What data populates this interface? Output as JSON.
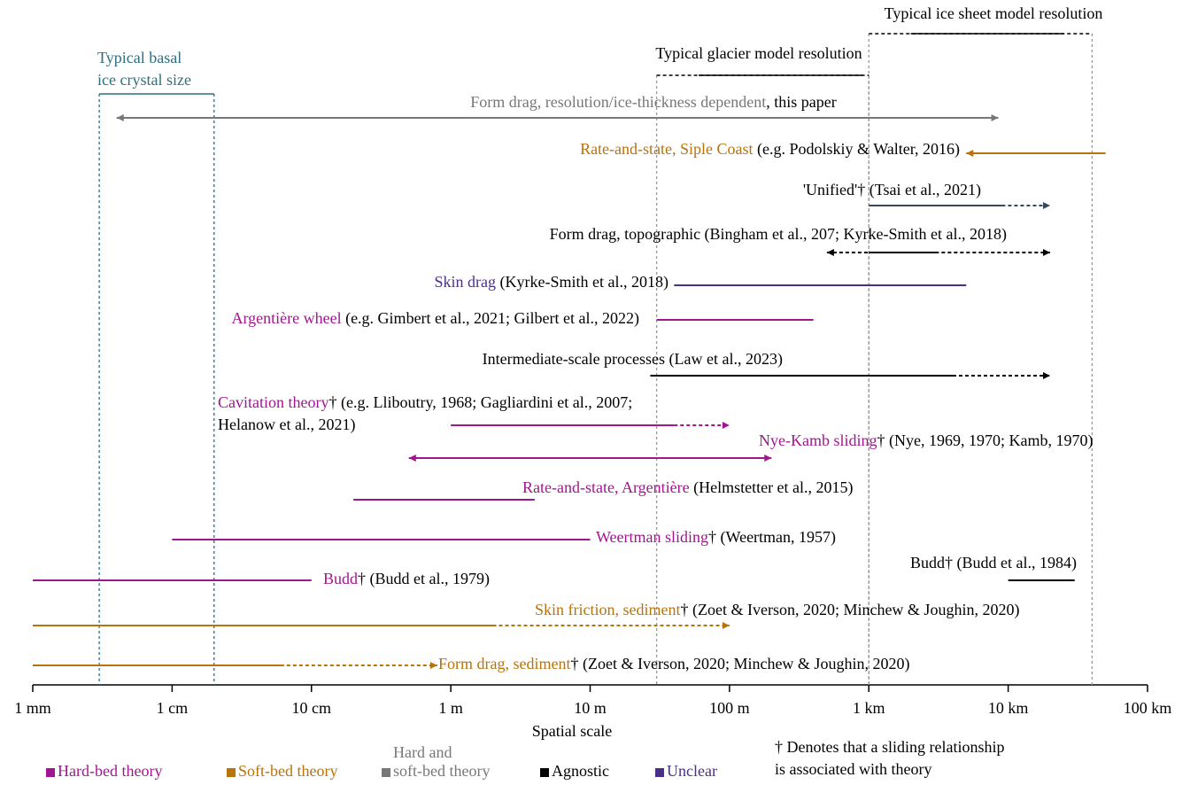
{
  "chart_data": {
    "type": "range",
    "xlabel": "Spatial scale",
    "log_x": true,
    "xlim": [
      0.001,
      100000
    ],
    "xticks": [
      {
        "value": 0.001,
        "label": "1 mm"
      },
      {
        "value": 0.01,
        "label": "1 cm"
      },
      {
        "value": 0.1,
        "label": "10 cm"
      },
      {
        "value": 1,
        "label": "1 m"
      },
      {
        "value": 10,
        "label": "10 m"
      },
      {
        "value": 100,
        "label": "100 m"
      },
      {
        "value": 1000,
        "label": "1 km"
      },
      {
        "value": 10000,
        "label": "10 km"
      },
      {
        "value": 100000,
        "label": "100 km"
      }
    ],
    "legend": [
      {
        "lines": [
          "Hard-bed theory"
        ],
        "color": "#a0168f"
      },
      {
        "lines": [
          "Soft-bed theory"
        ],
        "color": "#b8730a"
      },
      {
        "lines": [
          "Hard and",
          "soft-bed theory"
        ],
        "color": "#777777"
      },
      {
        "lines": [
          "Agnostic"
        ],
        "color": "#000000"
      },
      {
        "lines": [
          "Unclear"
        ],
        "color": "#4b2d8a"
      }
    ],
    "footnote": [
      "† Denotes that a sliding relationship",
      "is associated with theory"
    ],
    "references": [
      {
        "lines": [
          "Typical ice sheet model resolution"
        ],
        "color": "#000000",
        "dashed": [
          1000,
          40000
        ],
        "solid": [
          2000,
          25000
        ]
      },
      {
        "lines": [
          "Typical glacier model resolution"
        ],
        "color": "#000000",
        "dashed": [
          30,
          1000
        ],
        "solid": [
          60,
          900
        ]
      },
      {
        "lines": [
          "Typical basal",
          "ice crystal size"
        ],
        "color": "#2e6f80",
        "solid": [
          0.003,
          0.02
        ]
      }
    ],
    "items": [
      {
        "name": "Form drag, resolution/ice-thickness dependent",
        "citation": [
          ", this paper"
        ],
        "category": 2,
        "solid": [
          0.004,
          8500
        ],
        "arrows": "both"
      },
      {
        "name": "Rate-and-state, Siple Coast",
        "citation": [
          " (e.g. Podolskiy & Walter, 2016)"
        ],
        "category": 1,
        "solid": [
          5000,
          50000
        ],
        "arrows": "left"
      },
      {
        "citation": [
          "'Unified'† (Tsai et al., 2021)"
        ],
        "category": 3,
        "color": "#34495e",
        "solid": [
          1000,
          9000
        ],
        "dashed": [
          9000,
          20000
        ],
        "arrows": "right"
      },
      {
        "citation": [
          "Form drag, topographic (Bingham et al., 207; Kyrke-Smith et al., 2018)"
        ],
        "category": 3,
        "dashed_left": [
          500,
          1000
        ],
        "solid": [
          1000,
          3000
        ],
        "dashed": [
          3000,
          20000
        ],
        "arrows": "both"
      },
      {
        "name": "Skin drag",
        "citation": [
          " (Kyrke-Smith et al., 2018)"
        ],
        "category": 4,
        "solid": [
          40,
          5000
        ]
      },
      {
        "name": "Argentière wheel",
        "citation": [
          " (e.g. Gimbert et al., 2021; Gilbert et al., 2022)"
        ],
        "category": 0,
        "solid": [
          30,
          400
        ]
      },
      {
        "citation": [
          "Intermediate-scale processes (Law et al., 2023)"
        ],
        "category": 3,
        "solid": [
          27,
          4000
        ],
        "dashed": [
          4000,
          20000
        ],
        "arrows": "right"
      },
      {
        "name": "Cavitation theory",
        "citation": [
          "† (e.g. Lliboutry, 1968; Gagliardini et al., 2007;",
          "Helanow et al., 2021)"
        ],
        "category": 0,
        "solid": [
          1,
          40
        ],
        "dashed": [
          40,
          100
        ],
        "arrows": "right"
      },
      {
        "name": "Nye-Kamb sliding",
        "citation": [
          "† (Nye, 1969, 1970; Kamb, 1970)"
        ],
        "category": 0,
        "solid": [
          0.5,
          200
        ],
        "arrows": "both"
      },
      {
        "name": "Rate-and-state, Argentière",
        "citation": [
          " (Helmstetter et al., 2015)"
        ],
        "category": 0,
        "solid": [
          0.2,
          4
        ]
      },
      {
        "name": "Weertman sliding",
        "citation": [
          "† (Weertman, 1957)"
        ],
        "category": 0,
        "solid": [
          0.01,
          10
        ]
      },
      {
        "citation": [
          "Budd† (Budd et al., 1984)"
        ],
        "category": 3,
        "solid": [
          10000,
          30000
        ]
      },
      {
        "name": "Budd",
        "citation": [
          "† (Budd et al., 1979)"
        ],
        "category": 0,
        "solid": [
          0.001,
          0.1
        ]
      },
      {
        "name": "Skin friction, sediment",
        "citation": [
          "† (Zoet & Iverson, 2020; Minchew & Joughin, 2020)"
        ],
        "category": 1,
        "solid": [
          0.001,
          2
        ],
        "dashed": [
          2,
          100
        ],
        "arrows": "right"
      },
      {
        "name": "Form drag, sediment",
        "citation": [
          "† (Zoet & Iverson, 2020; Minchew & Joughin, 2020)"
        ],
        "category": 1,
        "solid": [
          0.001,
          0.06
        ],
        "dashed": [
          0.06,
          0.8
        ],
        "arrows": "right"
      }
    ]
  }
}
